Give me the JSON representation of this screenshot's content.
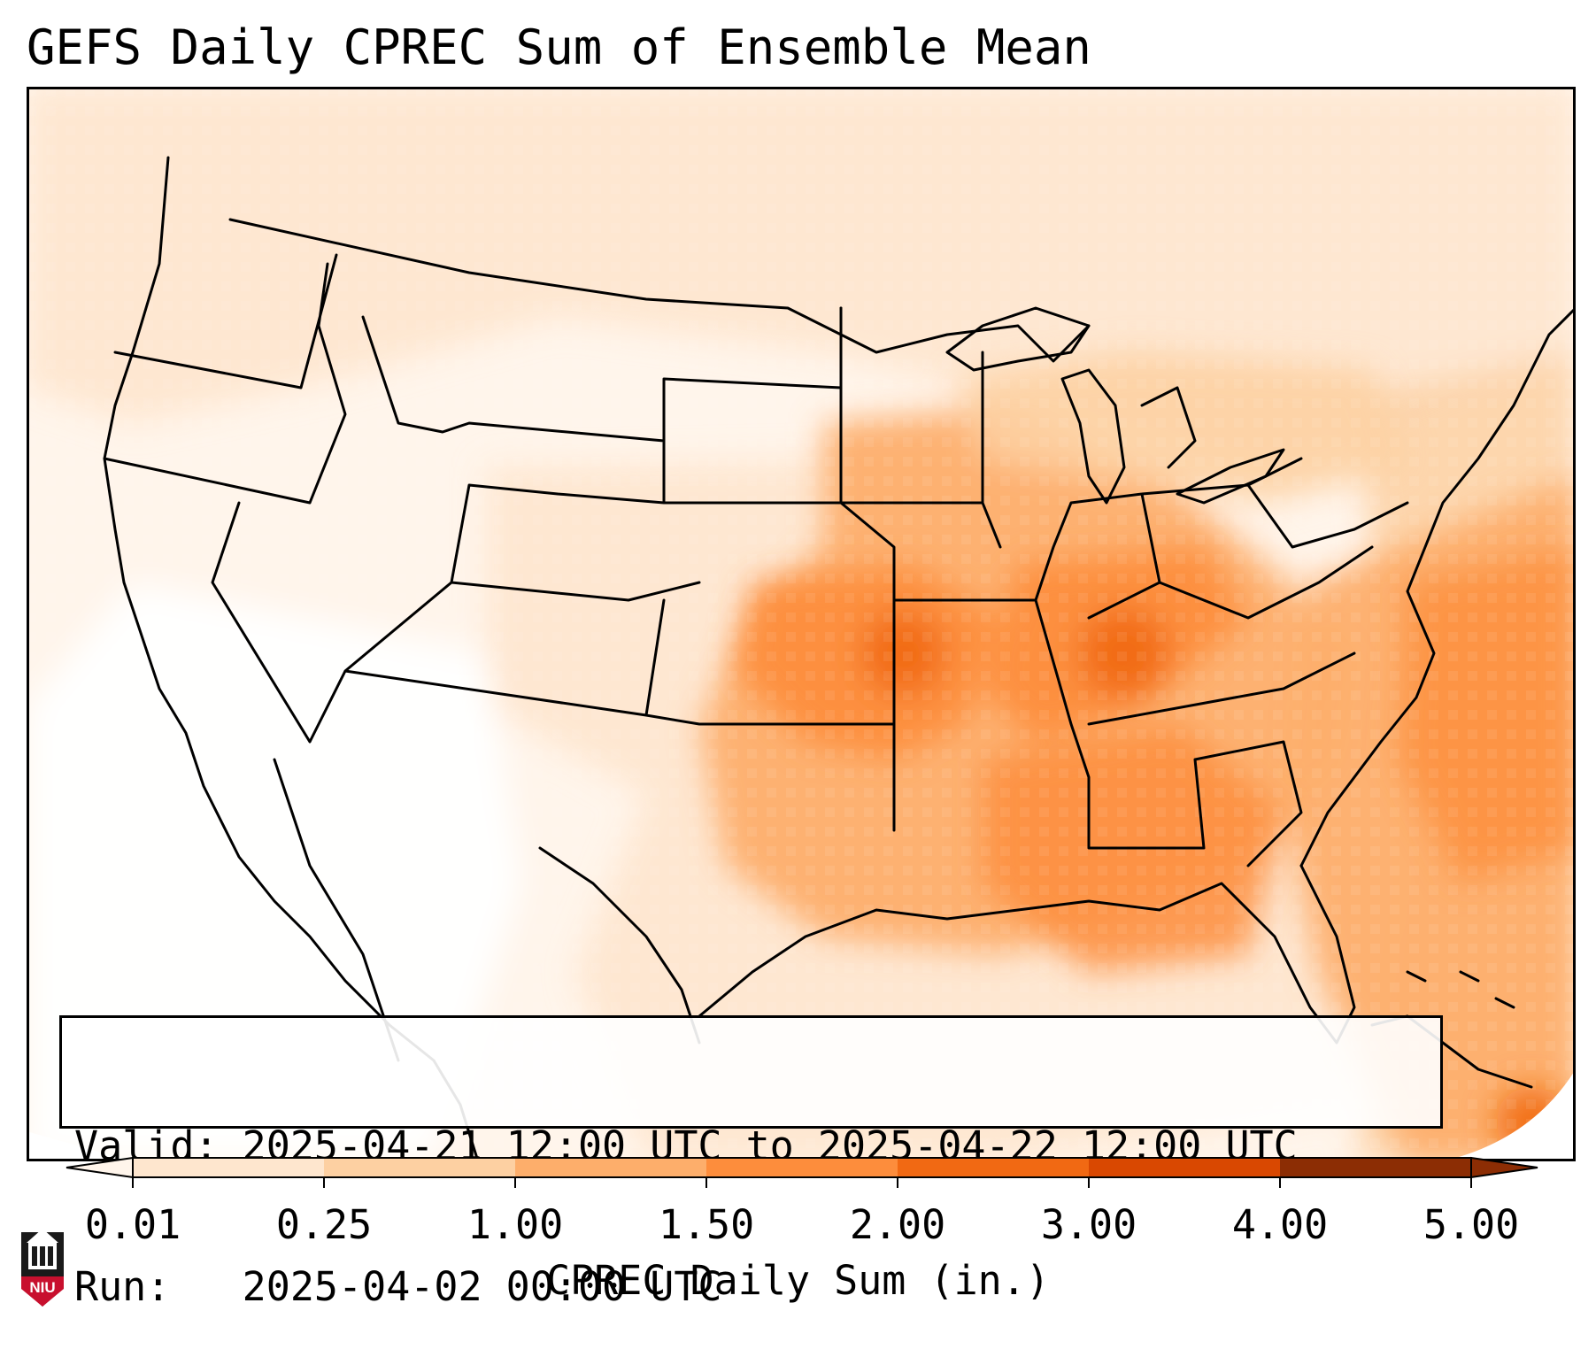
{
  "title": "GEFS Daily CPREC Sum of Ensemble Mean",
  "info": {
    "valid_label": "Valid:",
    "valid_value": "2025-04-21 12:00 UTC to 2025-04-22 12:00 UTC",
    "run_label": "Run:",
    "run_value": "2025-04-02 00:00 UTC"
  },
  "colorbar": {
    "label": "CPREC Daily Sum (in.)",
    "ticks": [
      "0.01",
      "0.25",
      "1.00",
      "1.50",
      "2.00",
      "3.00",
      "4.00",
      "5.00"
    ],
    "colors": [
      "#fff5eb",
      "#fee6ce",
      "#fdd0a2",
      "#fdae6b",
      "#fd8d3c",
      "#f16913",
      "#d94801",
      "#8c2d04"
    ],
    "extend": "both"
  },
  "logo": {
    "text": "NIU",
    "color": "#c8102e"
  },
  "map": {
    "region": "Contiguous United States",
    "shading": "orange scale",
    "features": [
      "coastlines",
      "state borders",
      "country borders"
    ]
  }
}
